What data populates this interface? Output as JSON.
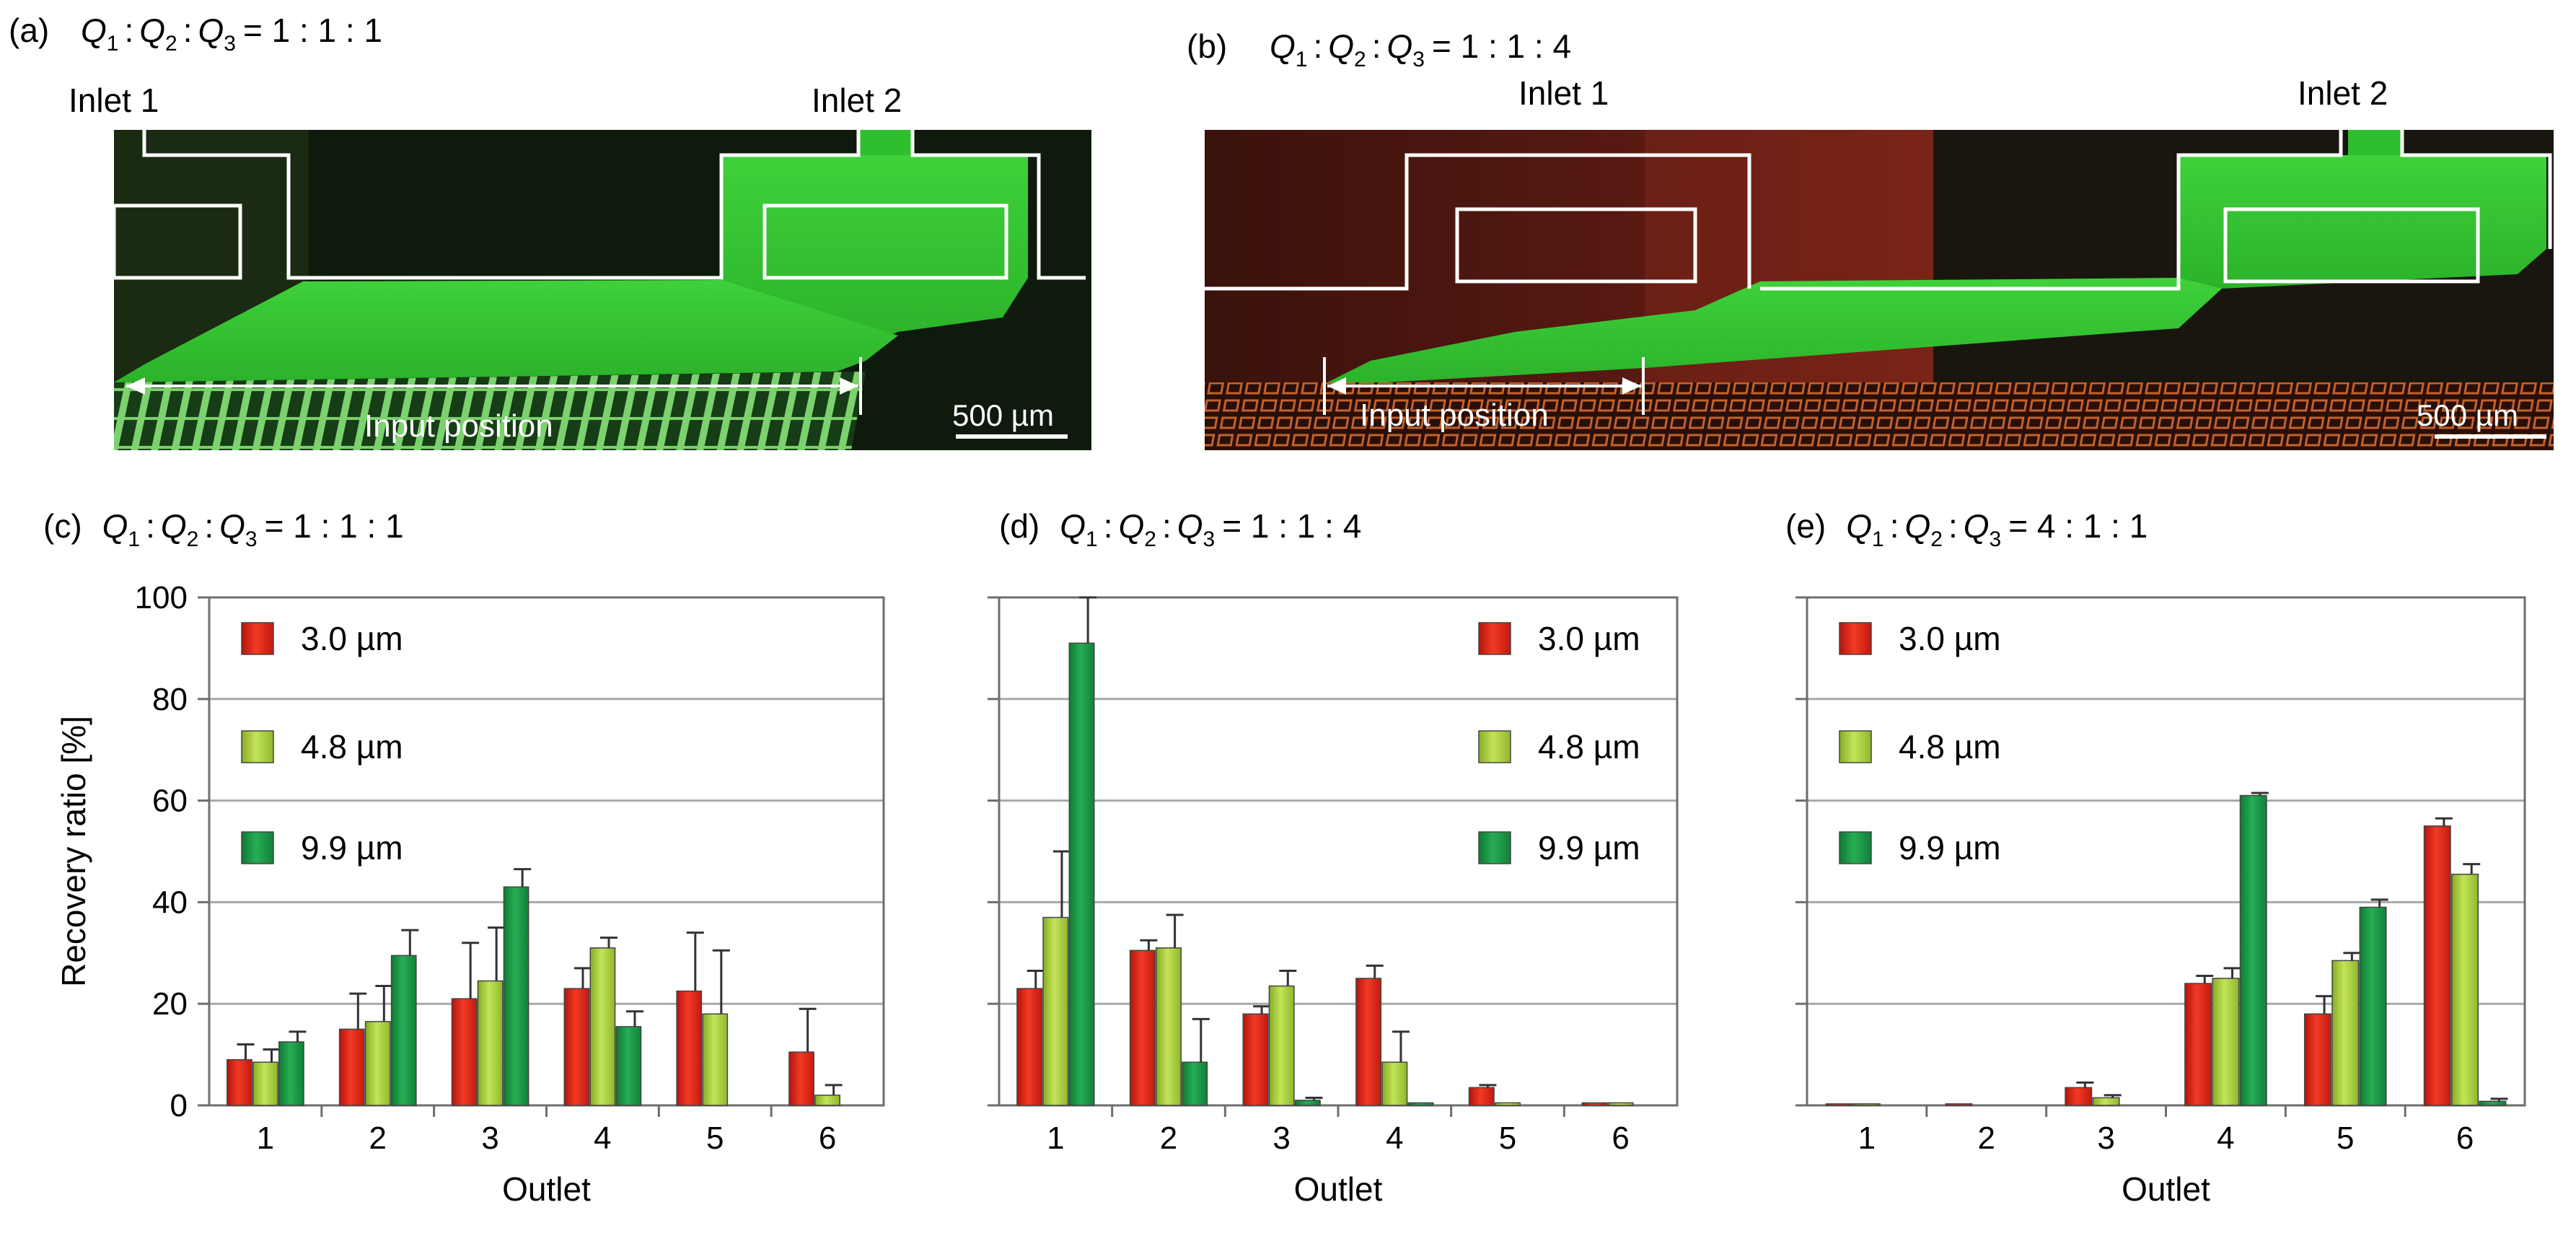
{
  "panels_top": [
    {
      "label": "(a)",
      "ratio": {
        "q1": "Q",
        "s1": "1",
        "q2": "Q",
        "s2": "2",
        "q3": "Q",
        "s3": "3",
        "values": "= 1 : 1 : 1",
        "sep": ":"
      },
      "inlet1": "Inlet 1",
      "inlet2": "Inlet 2",
      "input_position": "Input position",
      "scale_bar": "500 µm"
    },
    {
      "label": "(b)",
      "ratio": {
        "q1": "Q",
        "s1": "1",
        "q2": "Q",
        "s2": "2",
        "q3": "Q",
        "s3": "3",
        "values": "= 1 : 1 : 4",
        "sep": ":"
      },
      "inlet1": "Inlet 1",
      "inlet2": "Inlet 2",
      "input_position": "Input position",
      "scale_bar": "500 µm"
    }
  ],
  "chart_data": [
    {
      "type": "bar",
      "panel_label": "(c)",
      "ratio_values": "= 1 : 1 : 1",
      "categories": [
        "1",
        "2",
        "3",
        "4",
        "5",
        "6"
      ],
      "xlabel": "Outlet",
      "ylabel": "Recovery ratio [%]",
      "ylim": [
        0,
        100
      ],
      "yticks": [
        "0",
        "20",
        "40",
        "60",
        "80",
        "100"
      ],
      "grid": true,
      "legend_placement": "top-left",
      "series": [
        {
          "name": "3.0 µm",
          "color": "#e8291c",
          "values": [
            9,
            15,
            21,
            23,
            22.5,
            10.5
          ],
          "errors": [
            3,
            7,
            11,
            4,
            11.5,
            8.5
          ]
        },
        {
          "name": "4.8 µm",
          "color": "#a6cf3a",
          "values": [
            8.5,
            16.5,
            24.5,
            31,
            18,
            2
          ],
          "errors": [
            2.5,
            7,
            10.5,
            2,
            12.5,
            2
          ]
        },
        {
          "name": "9.9 µm",
          "color": "#1f9a4b",
          "values": [
            12.5,
            29.5,
            43,
            15.5,
            0,
            0
          ],
          "errors": [
            2,
            5,
            3.5,
            3,
            0,
            0
          ]
        }
      ]
    },
    {
      "type": "bar",
      "panel_label": "(d)",
      "ratio_values": "= 1 : 1 : 4",
      "categories": [
        "1",
        "2",
        "3",
        "4",
        "5",
        "6"
      ],
      "xlabel": "Outlet",
      "ylabel": "",
      "ylim": [
        0,
        100
      ],
      "grid": true,
      "legend_placement": "top-right",
      "series": [
        {
          "name": "3.0 µm",
          "color": "#e8291c",
          "values": [
            23,
            30.5,
            18,
            25,
            3.5,
            0.5
          ],
          "errors": [
            3.5,
            2,
            1.5,
            2.5,
            0.5,
            0
          ]
        },
        {
          "name": "4.8 µm",
          "color": "#a6cf3a",
          "values": [
            37,
            31,
            23.5,
            8.5,
            0.5,
            0.5
          ],
          "errors": [
            13,
            6.5,
            3,
            6,
            0,
            0
          ]
        },
        {
          "name": "9.9 µm",
          "color": "#1f9a4b",
          "values": [
            91,
            8.5,
            1,
            0.5,
            0,
            0
          ],
          "errors": [
            9,
            8.5,
            0.5,
            0,
            0,
            0
          ]
        }
      ]
    },
    {
      "type": "bar",
      "panel_label": "(e)",
      "ratio_values": "= 4 : 1 : 1",
      "categories": [
        "1",
        "2",
        "3",
        "4",
        "5",
        "6"
      ],
      "xlabel": "Outlet",
      "ylabel": "",
      "ylim": [
        0,
        100
      ],
      "grid": true,
      "legend_placement": "top-left",
      "series": [
        {
          "name": "3.0 µm",
          "color": "#e8291c",
          "values": [
            0.3,
            0.3,
            3.5,
            24,
            18,
            55
          ],
          "errors": [
            0,
            0,
            1,
            1.5,
            3.5,
            1.5
          ]
        },
        {
          "name": "4.8 µm",
          "color": "#a6cf3a",
          "values": [
            0.3,
            0,
            1.5,
            25,
            28.5,
            45.5
          ],
          "errors": [
            0,
            0,
            0.5,
            2,
            1.5,
            2
          ]
        },
        {
          "name": "9.9 µm",
          "color": "#1f9a4b",
          "values": [
            0,
            0,
            0,
            61,
            39,
            0.8
          ],
          "errors": [
            0,
            0,
            0,
            0.5,
            1.5,
            0.5
          ]
        }
      ]
    }
  ]
}
